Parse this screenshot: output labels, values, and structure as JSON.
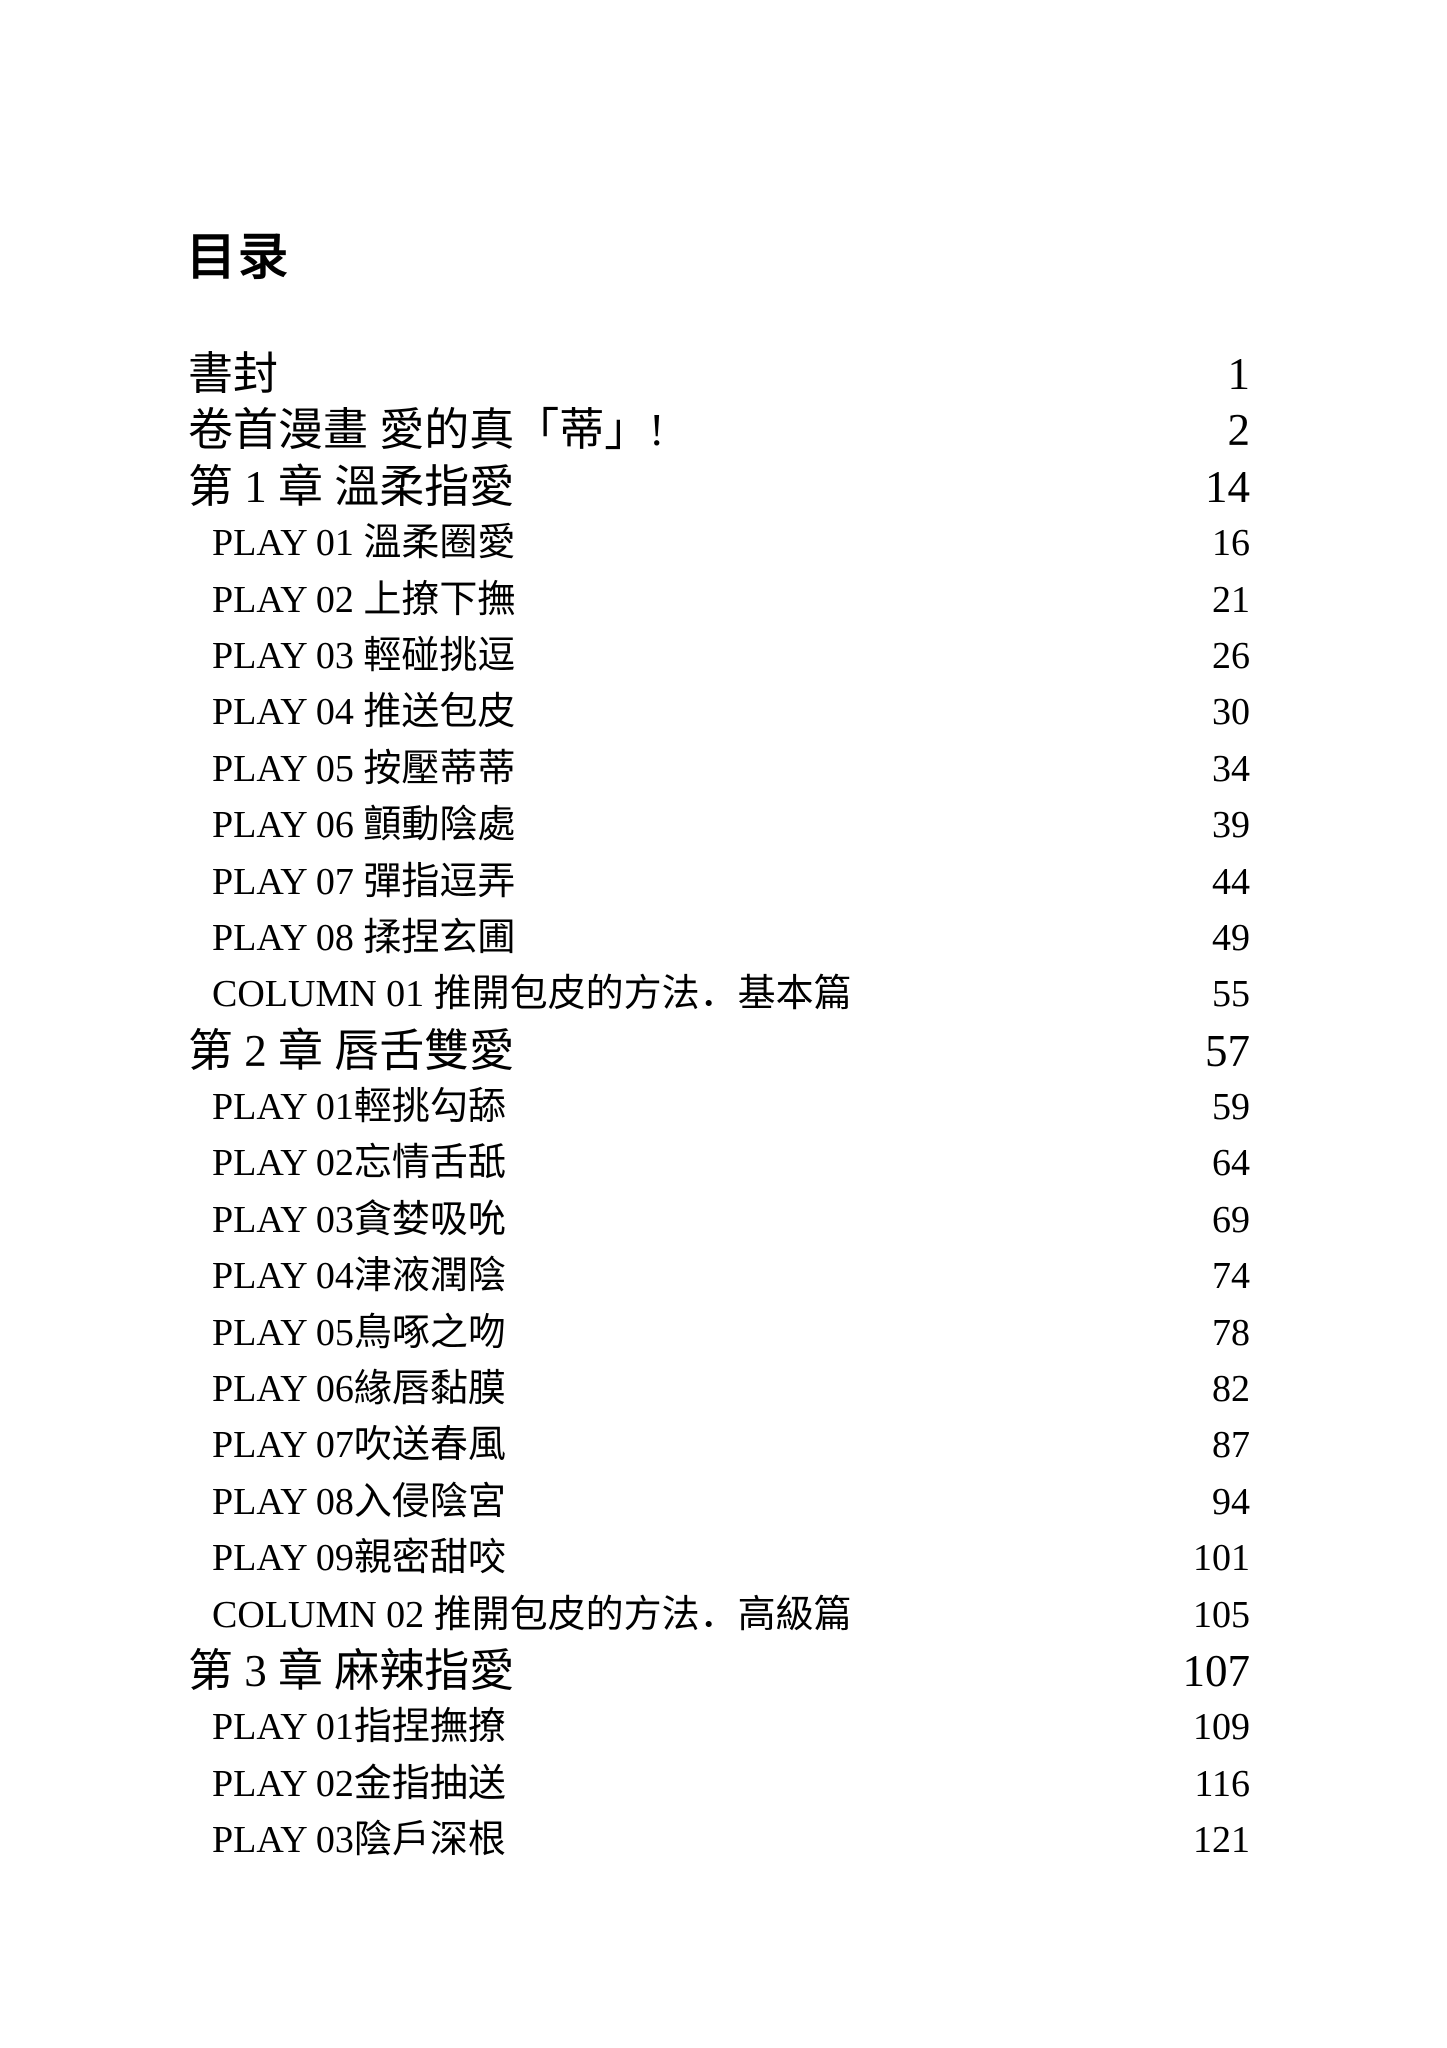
{
  "title": "目录",
  "toc": [
    {
      "label": "書封",
      "page": "1",
      "level": 0
    },
    {
      "label": "卷首漫畫 愛的真「蒂」!",
      "page": "2",
      "level": 0
    },
    {
      "label": "第 1 章 溫柔指愛",
      "page": "14",
      "level": 0
    },
    {
      "label": "PLAY 01 溫柔圈愛",
      "page": "16",
      "level": 1
    },
    {
      "label": "PLAY 02 上撩下撫",
      "page": "21",
      "level": 1
    },
    {
      "label": "PLAY 03 輕碰挑逗",
      "page": "26",
      "level": 1
    },
    {
      "label": "PLAY 04 推送包皮",
      "page": "30",
      "level": 1
    },
    {
      "label": "PLAY 05 按壓蒂蒂",
      "page": "34",
      "level": 1
    },
    {
      "label": "PLAY 06 顫動陰處",
      "page": "39",
      "level": 1
    },
    {
      "label": "PLAY 07 彈指逗弄",
      "page": "44",
      "level": 1
    },
    {
      "label": "PLAY 08 揉捏玄圃",
      "page": "49",
      "level": 1
    },
    {
      "label": "COLUMN 01 推開包皮的方法．基本篇",
      "page": "55",
      "level": 1
    },
    {
      "label": "第 2 章 唇舌雙愛",
      "page": "57",
      "level": 0
    },
    {
      "label": "PLAY 01輕挑勾舔",
      "page": "59",
      "level": 1
    },
    {
      "label": "PLAY 02忘情舌舐",
      "page": "64",
      "level": 1
    },
    {
      "label": "PLAY 03貪婪吸吮",
      "page": "69",
      "level": 1
    },
    {
      "label": "PLAY 04津液潤陰",
      "page": "74",
      "level": 1
    },
    {
      "label": "PLAY 05鳥啄之吻",
      "page": "78",
      "level": 1
    },
    {
      "label": "PLAY 06緣唇黏膜",
      "page": "82",
      "level": 1
    },
    {
      "label": "PLAY 07吹送春風",
      "page": "87",
      "level": 1
    },
    {
      "label": "PLAY 08入侵陰宮",
      "page": "94",
      "level": 1
    },
    {
      "label": "PLAY 09親密甜咬",
      "page": "101",
      "level": 1
    },
    {
      "label": "COLUMN 02 推開包皮的方法．高級篇",
      "page": "105",
      "level": 1
    },
    {
      "label": "第 3 章 麻辣指愛",
      "page": "107",
      "level": 0
    },
    {
      "label": "PLAY 01指捏撫撩",
      "page": "109",
      "level": 1
    },
    {
      "label": "PLAY 02金指抽送",
      "page": "116",
      "level": 1
    },
    {
      "label": "PLAY 03陰戶深根",
      "page": "121",
      "level": 1
    }
  ]
}
